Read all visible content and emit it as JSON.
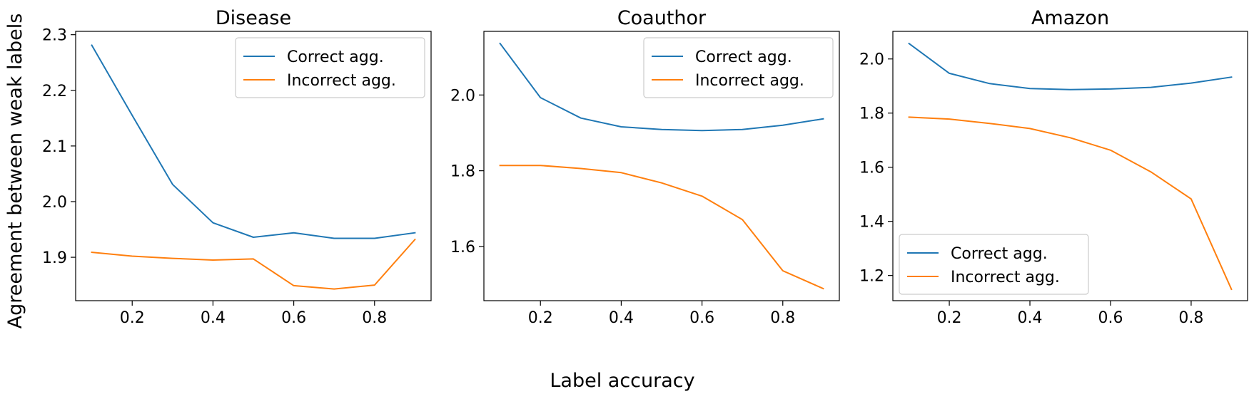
{
  "figure": {
    "xlabel": "Label accuracy",
    "ylabel": "Agreement between weak labels"
  },
  "series_colors": {
    "Correct agg.": "#1f77b4",
    "Incorrect agg.": "#ff7f0e"
  },
  "chart_data": [
    {
      "type": "line",
      "title": "Disease",
      "xlabel": "Label accuracy",
      "ylabel": "Agreement between weak labels",
      "x": [
        0.1,
        0.2,
        0.3,
        0.4,
        0.5,
        0.6,
        0.7,
        0.8,
        0.9
      ],
      "xlim": [
        0.06,
        0.94
      ],
      "ylim": [
        1.822,
        2.306
      ],
      "xticks": [
        "0.2",
        "0.4",
        "0.6",
        "0.8"
      ],
      "yticks": [
        "1.9",
        "2.0",
        "2.1",
        "2.2",
        "2.3"
      ],
      "grid": false,
      "legend_position": "upper right",
      "series": [
        {
          "name": "Correct agg.",
          "color": "#1f77b4",
          "values": [
            2.281,
            2.155,
            2.031,
            1.962,
            1.936,
            1.944,
            1.934,
            1.934,
            1.944
          ]
        },
        {
          "name": "Incorrect agg.",
          "color": "#ff7f0e",
          "values": [
            1.909,
            1.902,
            1.898,
            1.895,
            1.897,
            1.849,
            1.843,
            1.85,
            1.932
          ]
        }
      ]
    },
    {
      "type": "line",
      "title": "Coauthor",
      "xlabel": "Label accuracy",
      "ylabel": "Agreement between weak labels",
      "x": [
        0.1,
        0.2,
        0.3,
        0.4,
        0.5,
        0.6,
        0.7,
        0.8,
        0.9
      ],
      "xlim": [
        0.06,
        0.94
      ],
      "ylim": [
        1.457,
        2.168
      ],
      "xticks": [
        "0.2",
        "0.4",
        "0.6",
        "0.8"
      ],
      "yticks": [
        "1.6",
        "1.8",
        "2.0"
      ],
      "grid": false,
      "legend_position": "upper right",
      "series": [
        {
          "name": "Correct agg.",
          "color": "#1f77b4",
          "values": [
            2.136,
            1.993,
            1.939,
            1.916,
            1.909,
            1.906,
            1.909,
            1.92,
            1.937
          ]
        },
        {
          "name": "Incorrect agg.",
          "color": "#ff7f0e",
          "values": [
            1.814,
            1.814,
            1.806,
            1.795,
            1.768,
            1.733,
            1.671,
            1.536,
            1.489
          ]
        }
      ]
    },
    {
      "type": "line",
      "title": "Amazon",
      "xlabel": "Label accuracy",
      "ylabel": "Agreement between weak labels",
      "x": [
        0.1,
        0.2,
        0.3,
        0.4,
        0.5,
        0.6,
        0.7,
        0.8,
        0.9
      ],
      "xlim": [
        0.06,
        0.94
      ],
      "ylim": [
        1.107,
        2.102
      ],
      "xticks": [
        "0.2",
        "0.4",
        "0.6",
        "0.8"
      ],
      "yticks": [
        "1.2",
        "1.4",
        "1.6",
        "1.8",
        "2.0"
      ],
      "grid": false,
      "legend_position": "lower left",
      "series": [
        {
          "name": "Correct agg.",
          "color": "#1f77b4",
          "values": [
            2.057,
            1.947,
            1.909,
            1.891,
            1.887,
            1.889,
            1.895,
            1.911,
            1.933
          ]
        },
        {
          "name": "Incorrect agg.",
          "color": "#ff7f0e",
          "values": [
            1.785,
            1.778,
            1.762,
            1.743,
            1.709,
            1.663,
            1.583,
            1.483,
            1.149
          ]
        }
      ]
    }
  ]
}
